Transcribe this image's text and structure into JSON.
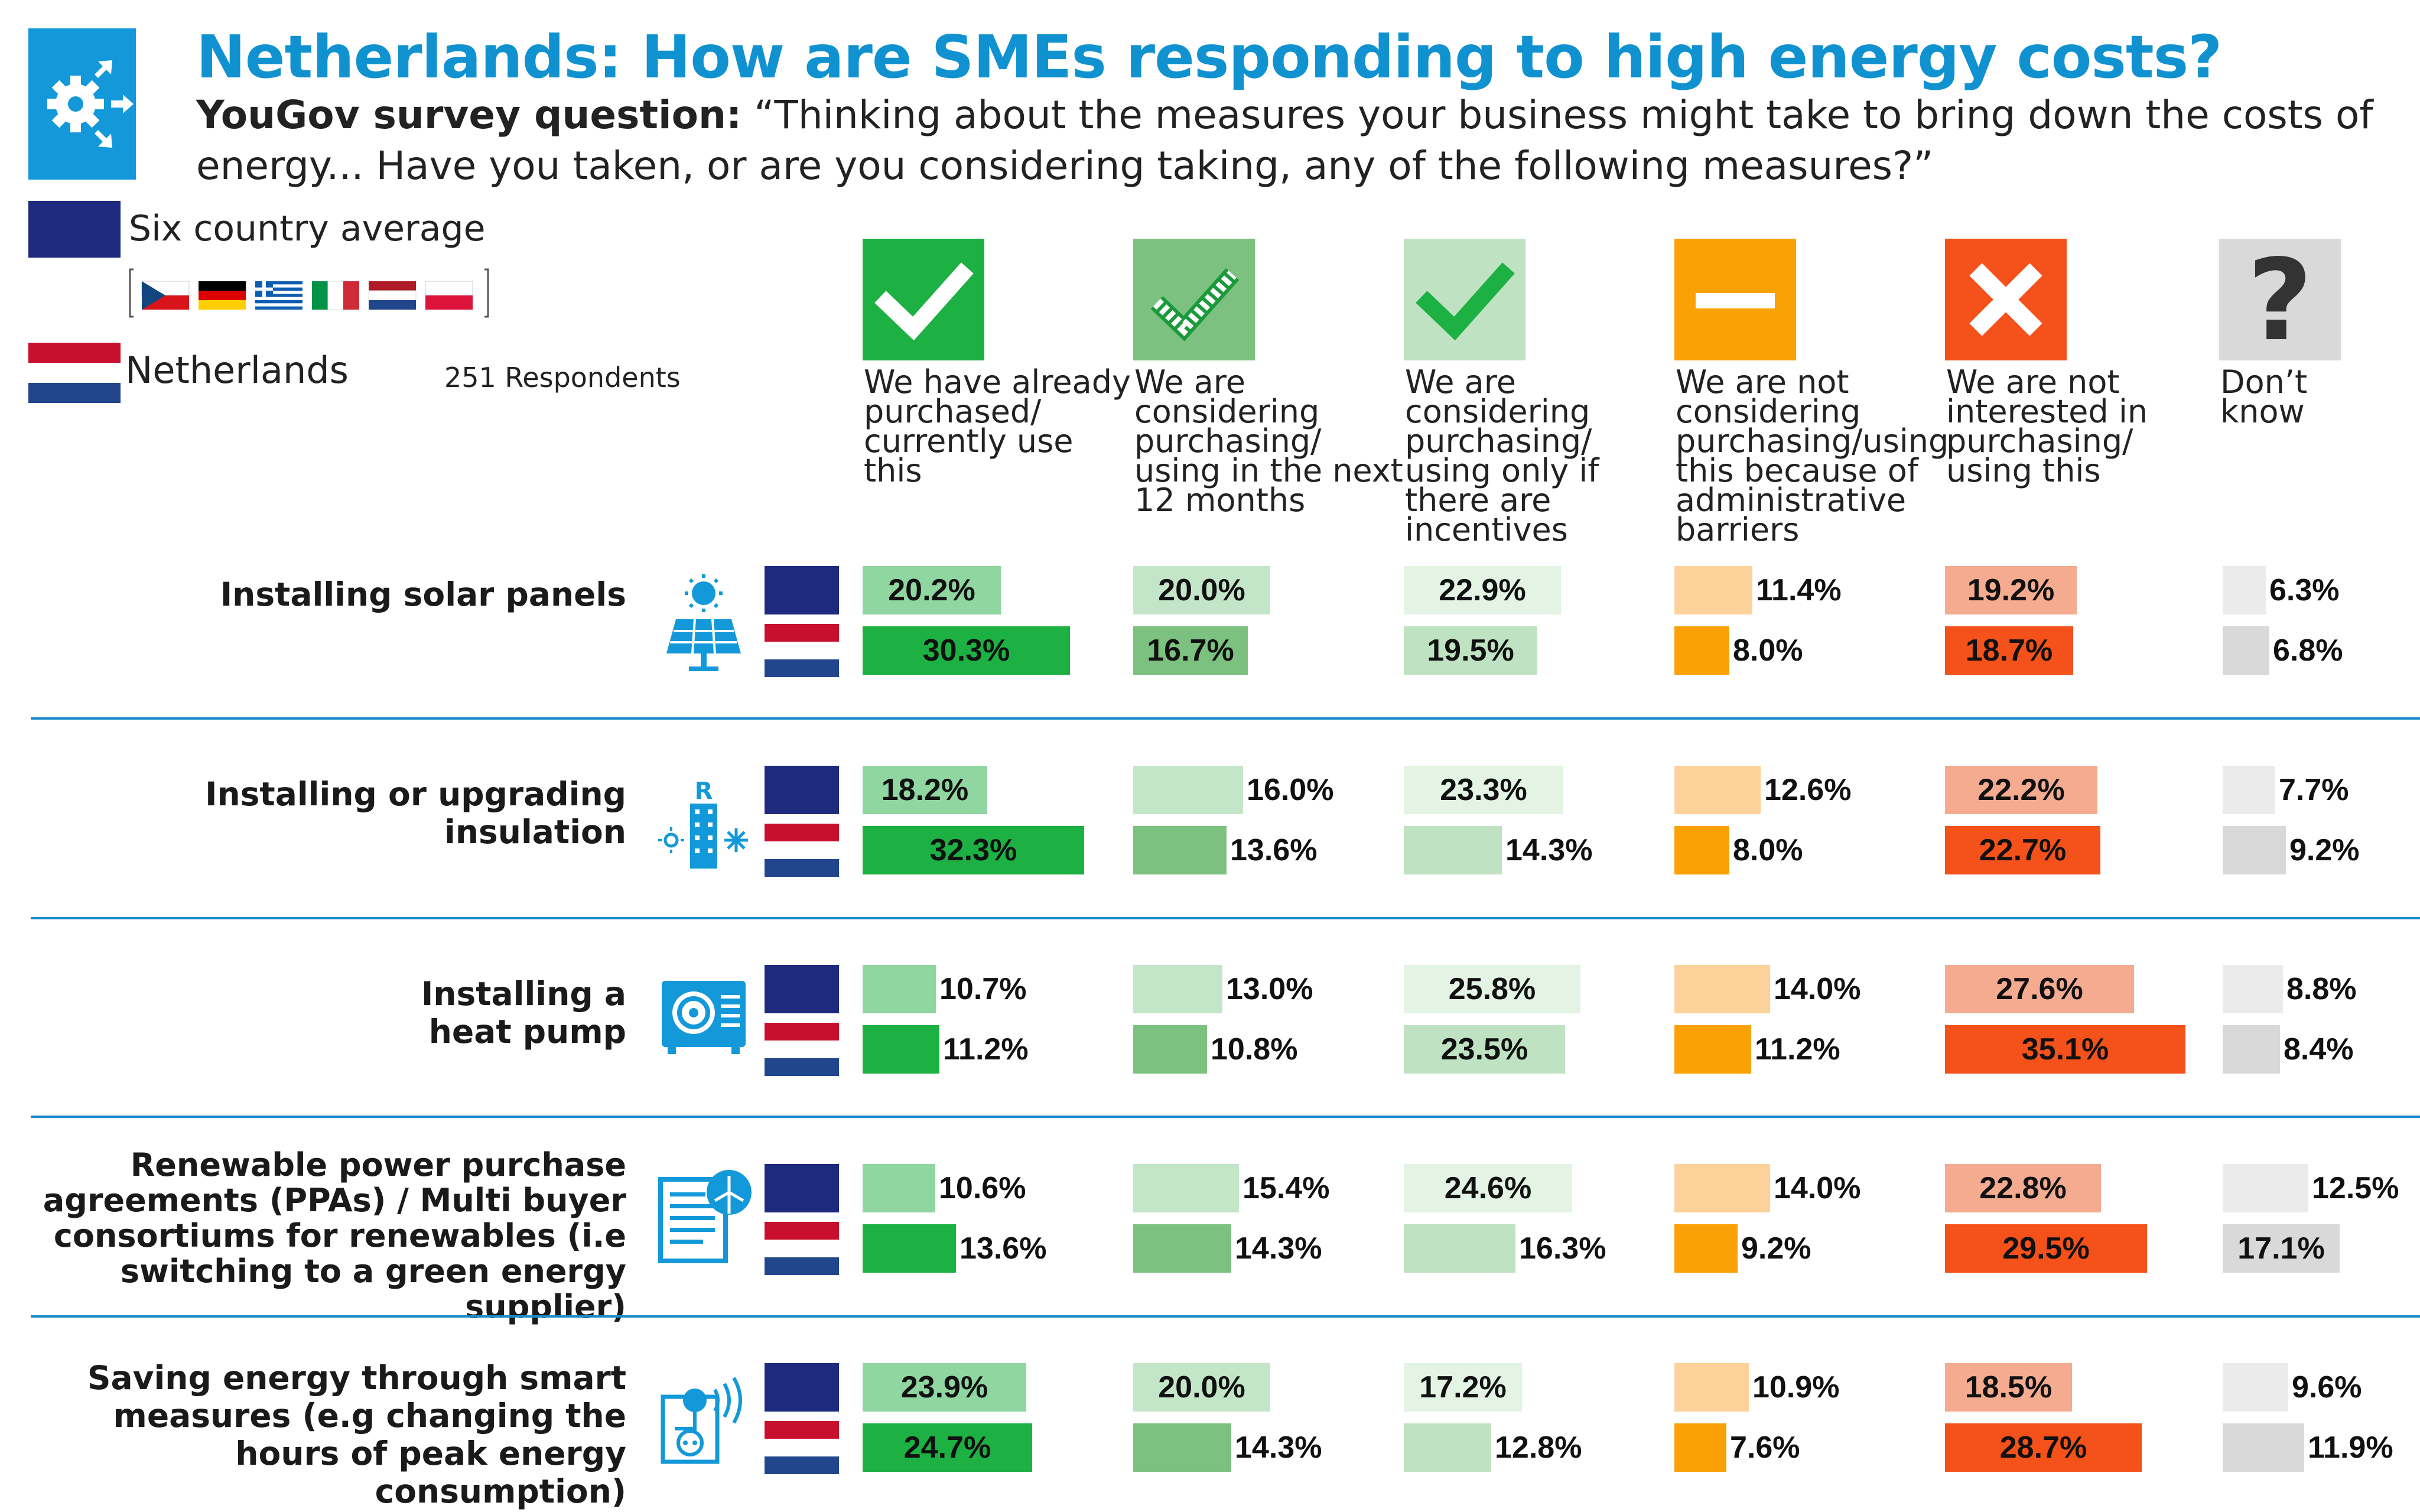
{
  "header": {
    "title": "Netherlands: How are SMEs responding to high energy costs?",
    "question_prefix": "YouGov survey question:",
    "question_text": "“Thinking about the measures your business might take to bring down the costs of energy... Have you taken, or are you considering taking, any of the following measures?”"
  },
  "legend": {
    "average_label": "Six country average",
    "country_label": "Netherlands",
    "respondents": "251 Respondents"
  },
  "colors": {
    "title_blue": "#1192d0",
    "eu_blue": "#1d2a7e",
    "separator": "#1b8ccb",
    "nl_red": "#c8102e",
    "nl_blue": "#21468b"
  },
  "chart_data": {
    "type": "bar",
    "series": [
      {
        "name": "Six country average"
      },
      {
        "name": "Netherlands"
      }
    ],
    "columns": [
      {
        "label": "We have already purchased/ currently use this",
        "icon": "check-icon",
        "avg_color": "#8fd6a0",
        "nl_color": "#1db043"
      },
      {
        "label": "We are considering purchasing/ using in the next 12 months",
        "icon": "dotted-check-icon",
        "avg_color": "#c4e6c8",
        "nl_color": "#7cc17f"
      },
      {
        "label": "We are considering purchasing/ using only if there are incentives",
        "icon": "light-check-icon",
        "avg_color": "#e3f3e4",
        "nl_color": "#bfe3c2"
      },
      {
        "label": "We are not considering purchasing/using this because of administrative barriers",
        "icon": "minus-icon",
        "avg_color": "#fcd29a",
        "nl_color": "#f9a106"
      },
      {
        "label": "We are not interested in purchasing/ using this",
        "icon": "cross-icon",
        "avg_color": "#f4ab90",
        "nl_color": "#f5511a"
      },
      {
        "label": "Don’t know",
        "icon": "question-icon",
        "avg_color": "#ebebeb",
        "nl_color": "#d9d9d9"
      }
    ],
    "rows": [
      {
        "label": "Installing solar panels",
        "icon": "solar-panel-icon",
        "average": [
          20.2,
          20.0,
          22.9,
          11.4,
          19.2,
          6.3
        ],
        "netherlands": [
          30.3,
          16.7,
          19.5,
          8.0,
          18.7,
          6.8
        ],
        "average_labels": [
          "20.2%",
          "20.0%",
          "22.9%",
          "11.4%",
          "19.2%",
          "6.3%"
        ],
        "netherlands_labels": [
          "30.3%",
          "16.7%",
          "19.5%",
          "8.0%",
          "18.7%",
          "6.8%"
        ]
      },
      {
        "label": "Installing or upgrading insulation",
        "icon": "insulation-icon",
        "average": [
          18.2,
          16.0,
          23.3,
          12.6,
          22.2,
          7.7
        ],
        "netherlands": [
          32.3,
          13.6,
          14.3,
          8.0,
          22.7,
          9.2
        ],
        "average_labels": [
          "18.2%",
          "16.0%",
          "23.3%",
          "12.6%",
          "22.2%",
          "7.7%"
        ],
        "netherlands_labels": [
          "32.3%",
          "13.6%",
          "14.3%",
          "8.0%",
          "22.7%",
          "9.2%"
        ]
      },
      {
        "label": "Installing a heat pump",
        "icon": "heat-pump-icon",
        "average": [
          10.7,
          13.0,
          25.8,
          14.0,
          27.6,
          8.8
        ],
        "netherlands": [
          11.2,
          10.8,
          23.5,
          11.2,
          35.1,
          8.4
        ],
        "average_labels": [
          "10.7%",
          "13.0%",
          "25.8%",
          "14.0%",
          "27.6%",
          "8.8%"
        ],
        "netherlands_labels": [
          "11.2%",
          "10.8%",
          "23.5%",
          "11.2%",
          "35.1%",
          "8.4%"
        ]
      },
      {
        "label": "Renewable power purchase agreements (PPAs) / Multi buyer consortiums for renewables (i.e switching to a green energy supplier)",
        "icon": "renewable-contract-icon",
        "average": [
          10.6,
          15.4,
          24.6,
          14.0,
          22.8,
          12.5
        ],
        "netherlands": [
          13.6,
          14.3,
          16.3,
          9.2,
          29.5,
          17.1
        ],
        "average_labels": [
          "10.6%",
          "15.4%",
          "24.6%",
          "14.0%",
          "22.8%",
          "12.5%"
        ],
        "netherlands_labels": [
          "13.6%",
          "14.3%",
          "16.3%",
          "9.2%",
          "29.5%",
          "17.1%"
        ]
      },
      {
        "label": "Saving energy through smart measures (e.g changing the hours of peak energy consumption)",
        "icon": "smart-plug-icon",
        "average": [
          23.9,
          20.0,
          17.2,
          10.9,
          18.5,
          9.6
        ],
        "netherlands": [
          24.7,
          14.3,
          12.8,
          7.6,
          28.7,
          11.9
        ],
        "average_labels": [
          "23.9%",
          "20.0%",
          "17.2%",
          "10.9%",
          "18.5%",
          "9.6%"
        ],
        "netherlands_labels": [
          "24.7%",
          "14.3%",
          "12.8%",
          "7.6%",
          "28.7%",
          "11.9%"
        ]
      }
    ]
  }
}
